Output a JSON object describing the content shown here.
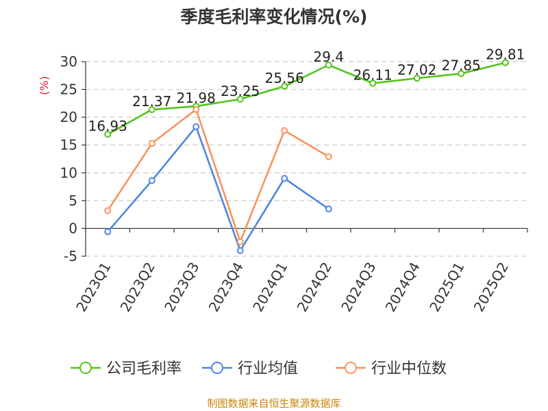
{
  "chart_data": {
    "type": "line",
    "title": "季度毛利率变化情况(%)",
    "ylabel": "(%)",
    "xlabel": "",
    "categories": [
      "2023Q1",
      "2023Q2",
      "2023Q3",
      "2023Q4",
      "2024Q1",
      "2024Q2",
      "2024Q3",
      "2024Q4",
      "2025Q1",
      "2025Q2"
    ],
    "ylim": [
      -5,
      30
    ],
    "yticks": [
      -5,
      0,
      5,
      10,
      15,
      20,
      25,
      30
    ],
    "grid": true,
    "legend_position": "bottom",
    "series": [
      {
        "name": "公司毛利率",
        "color": "#52c41a",
        "values": [
          16.93,
          21.37,
          21.98,
          23.25,
          25.56,
          29.4,
          26.11,
          27.02,
          27.85,
          29.81
        ],
        "show_labels": true
      },
      {
        "name": "行业均值",
        "color": "#4f86e0",
        "values": [
          -0.6,
          8.6,
          18.3,
          -4.0,
          9.0,
          3.5,
          null,
          null,
          null,
          null
        ],
        "show_labels": false
      },
      {
        "name": "行业中位数",
        "color": "#f7935c",
        "values": [
          3.2,
          15.3,
          21.4,
          -2.4,
          17.6,
          12.9,
          null,
          null,
          null,
          null
        ],
        "show_labels": false
      }
    ]
  },
  "footer": {
    "source": "制图数据来自恒生聚源数据库"
  }
}
